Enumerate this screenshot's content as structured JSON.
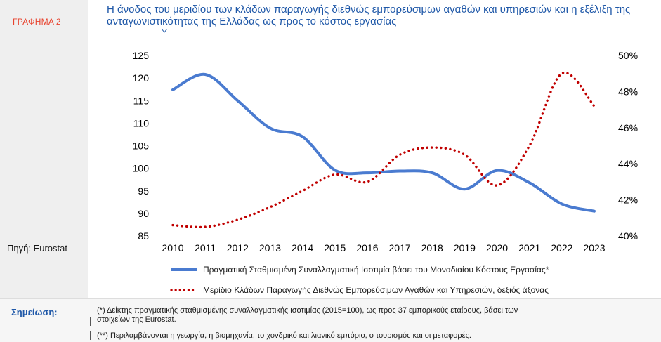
{
  "chart_label": "ΓΡΑΦΗΜΑ 2",
  "source": "Πηγή: Eurostat",
  "notes_label": "Σημείωση:",
  "notes": [
    "(*) Δείκτης πραγματικής σταθμισμένης συναλλαγματικής ισοτιμίας (2015=100), ως προς 37 εμπορικούς εταίρους, βάσει των",
    "στοιχείων της Eurostat.",
    "(**) Περιλαμβάνονται η γεωργία, η βιομηχανία, το χονδρικό και λιανικό εμπόριο, ο τουρισμός και οι μεταφορές."
  ],
  "colors": {
    "accent": "#1f58a8",
    "label": "#e8432e",
    "series_left": "#4a7bd0",
    "series_right": "#c00000"
  },
  "chart_data": {
    "type": "line",
    "title": "Η άνοδος του μεριδίου των κλάδων παραγωγής διεθνώς εμπορεύσιμων αγαθών και υπηρεσιών και η εξέλιξη της ανταγωνιστικότητας της Ελλάδας ως προς το κόστος εργασίας",
    "x": [
      2010,
      2011,
      2012,
      2013,
      2014,
      2015,
      2016,
      2017,
      2018,
      2019,
      2020,
      2021,
      2022,
      2023
    ],
    "x_tick_labels": [
      "2010",
      "2011",
      "2012",
      "2013",
      "2014",
      "2015",
      "2016",
      "2017",
      "2018",
      "2019",
      "2020",
      "2021",
      "2022",
      "2023"
    ],
    "ylim_left": [
      85,
      125
    ],
    "y_left_ticks": [
      "85",
      "90",
      "95",
      "100",
      "105",
      "110",
      "115",
      "120",
      "125"
    ],
    "ylim_right": [
      40,
      50
    ],
    "y_right_ticks": [
      "40%",
      "42%",
      "44%",
      "46%",
      "48%",
      "50%"
    ],
    "grid": false,
    "legend_position": "bottom",
    "series": [
      {
        "name": "Πραγματική Σταθμισμένη Συναλλαγματική Ισοτιμία βάσει του Μοναδιαίου Κόστους Εργασίας*",
        "axis": "left",
        "style": "solid",
        "values": [
          117.4,
          120.8,
          115.0,
          108.9,
          107.0,
          99.6,
          99.0,
          99.4,
          99.0,
          95.4,
          99.5,
          96.8,
          92.1,
          90.5
        ]
      },
      {
        "name": "Μερίδιο Κλάδων Παραγωγής Διεθνώς Εμπορεύσιμων Αγαθών και Υπηρεσιών, δεξιός άξονας",
        "axis": "right",
        "style": "dotted",
        "values": [
          40.6,
          40.5,
          40.9,
          41.6,
          42.5,
          43.4,
          43.0,
          44.5,
          44.9,
          44.5,
          42.8,
          45.0,
          49.0,
          47.2
        ]
      }
    ]
  }
}
